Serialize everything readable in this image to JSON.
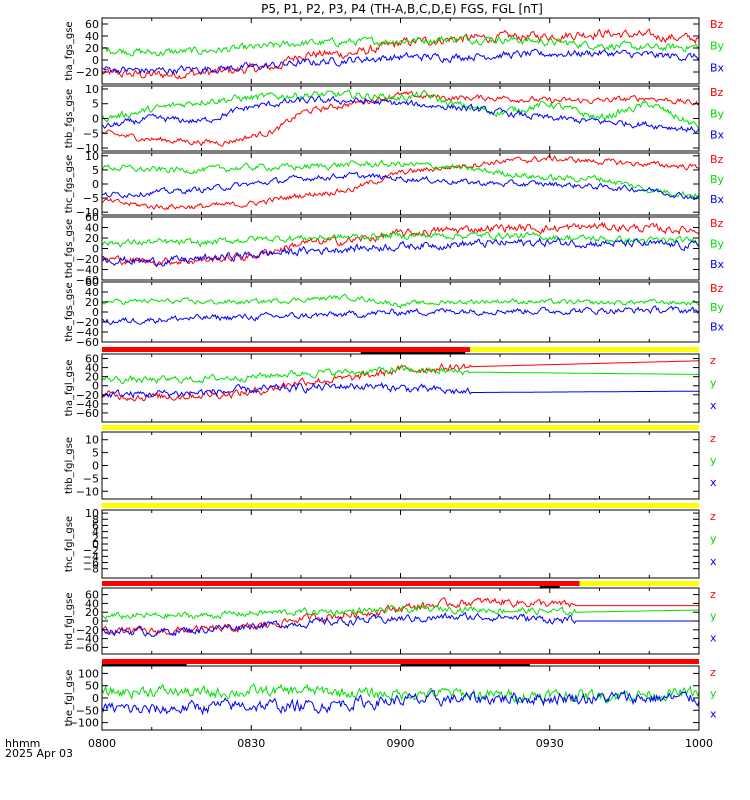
{
  "title": "P5, P1, P2, P3, P4 (TH-A,B,C,D,E) FGS, FGL [nT]",
  "colors": {
    "x": "#0000ff",
    "y": "#00e000",
    "z": "#ff0000",
    "bar_red": "#ff0000",
    "bar_yellow": "#ffff00",
    "bar_black": "#000000",
    "axis": "#000000"
  },
  "xaxis": {
    "range": [
      "08:00",
      "10:00"
    ],
    "ticks": [
      "0800",
      "0830",
      "0900",
      "0930",
      "1000"
    ],
    "label": "hhmm",
    "date": "2025 Apr 03"
  },
  "chart_data": [
    {
      "type": "line",
      "ylabel": "tha_fgs_gse",
      "ylim": [
        -40,
        70
      ],
      "yticks": [
        "60",
        "40",
        "20",
        "0",
        "−20"
      ],
      "legend": [
        "Bz",
        "By",
        "Bx"
      ],
      "series": [
        {
          "name": "Bz",
          "component": "z",
          "x": [
            "08:00",
            "08:10",
            "08:20",
            "08:30",
            "08:35",
            "08:40",
            "08:50",
            "08:55",
            "09:00",
            "09:10",
            "09:20",
            "09:30",
            "09:40",
            "09:50",
            "10:00"
          ],
          "y": [
            -22,
            -25,
            -22,
            -15,
            -12,
            10,
            10,
            18,
            28,
            35,
            38,
            40,
            45,
            40,
            35
          ],
          "noise": 6
        },
        {
          "name": "By",
          "component": "y",
          "x": [
            "08:00",
            "08:10",
            "08:20",
            "08:30",
            "08:40",
            "08:50",
            "09:00",
            "09:10",
            "09:20",
            "09:30",
            "09:40",
            "09:50",
            "10:00"
          ],
          "y": [
            18,
            12,
            15,
            20,
            28,
            30,
            32,
            35,
            35,
            30,
            25,
            20,
            22
          ],
          "noise": 5
        },
        {
          "name": "Bx",
          "component": "x",
          "x": [
            "08:00",
            "08:10",
            "08:20",
            "08:30",
            "08:40",
            "08:50",
            "09:00",
            "09:10",
            "09:20",
            "09:30",
            "09:40",
            "09:50",
            "10:00"
          ],
          "y": [
            -15,
            -18,
            -15,
            -12,
            -5,
            0,
            5,
            5,
            8,
            10,
            12,
            8,
            5
          ],
          "noise": 5
        }
      ]
    },
    {
      "type": "line",
      "ylabel": "thb_fgs_gse",
      "ylim": [
        -11,
        11
      ],
      "yticks": [
        "10",
        "5",
        "0",
        "−5",
        "−10"
      ],
      "legend": [
        "Bz",
        "By",
        "Bx"
      ],
      "series": [
        {
          "name": "Bz",
          "component": "z",
          "x": [
            "08:00",
            "08:10",
            "08:20",
            "08:25",
            "08:30",
            "08:35",
            "08:40",
            "08:50",
            "09:00",
            "09:10",
            "09:20",
            "09:30",
            "09:40",
            "09:50",
            "10:00"
          ],
          "y": [
            -5,
            -7,
            -8,
            -8,
            -6,
            -4,
            2,
            5,
            8,
            7,
            7,
            6,
            6,
            7,
            5
          ],
          "noise": 0.8
        },
        {
          "name": "By",
          "component": "y",
          "x": [
            "08:00",
            "08:10",
            "08:20",
            "08:30",
            "08:40",
            "08:50",
            "09:00",
            "09:05",
            "09:10",
            "09:20",
            "09:30",
            "09:40",
            "09:50",
            "10:00"
          ],
          "y": [
            0,
            3,
            6,
            7,
            8,
            8,
            7,
            8,
            5,
            2,
            5,
            0,
            5,
            -3
          ],
          "noise": 1.0
        },
        {
          "name": "Bx",
          "component": "x",
          "x": [
            "08:00",
            "08:10",
            "08:20",
            "08:30",
            "08:40",
            "08:50",
            "09:00",
            "09:10",
            "09:20",
            "09:30",
            "09:40",
            "09:50",
            "10:00"
          ],
          "y": [
            -3,
            0,
            -1,
            4,
            6,
            6,
            5,
            4,
            2,
            0,
            -1,
            -2,
            -4
          ],
          "noise": 0.9
        }
      ]
    },
    {
      "type": "line",
      "ylabel": "thc_fgs_gse",
      "ylim": [
        -11,
        11
      ],
      "yticks": [
        "10",
        "5",
        "0",
        "−5",
        "−10"
      ],
      "legend": [
        "Bz",
        "By",
        "Bx"
      ],
      "series": [
        {
          "name": "Bz",
          "component": "z",
          "x": [
            "08:00",
            "08:10",
            "08:20",
            "08:30",
            "08:40",
            "08:50",
            "09:00",
            "09:10",
            "09:20",
            "09:30",
            "09:40",
            "09:50",
            "10:00"
          ],
          "y": [
            -6,
            -8,
            -8,
            -7,
            -4,
            -2,
            4,
            6,
            8,
            9,
            8,
            7,
            6
          ],
          "noise": 0.8
        },
        {
          "name": "By",
          "component": "y",
          "x": [
            "08:00",
            "08:10",
            "08:20",
            "08:30",
            "08:40",
            "08:50",
            "09:00",
            "09:10",
            "09:20",
            "09:30",
            "09:40",
            "09:50",
            "10:00"
          ],
          "y": [
            6,
            5,
            5,
            6,
            6,
            7,
            7,
            6,
            4,
            2,
            2,
            -2,
            -4
          ],
          "noise": 0.9
        },
        {
          "name": "Bx",
          "component": "x",
          "x": [
            "08:00",
            "08:10",
            "08:20",
            "08:30",
            "08:40",
            "08:50",
            "09:00",
            "09:10",
            "09:20",
            "09:30",
            "09:40",
            "09:50",
            "10:00"
          ],
          "y": [
            -4,
            -3,
            -2,
            0,
            2,
            3,
            2,
            1,
            0,
            0,
            -1,
            -2,
            -5
          ],
          "noise": 0.8
        }
      ]
    },
    {
      "type": "line",
      "ylabel": "thd_fgs_gse",
      "ylim": [
        -60,
        60
      ],
      "yticks": [
        "60",
        "40",
        "20",
        "0",
        "−20",
        "−40",
        "−60"
      ],
      "legend": [
        "Bz",
        "By",
        "Bx"
      ],
      "series": [
        {
          "name": "Bz",
          "component": "z",
          "x": [
            "08:00",
            "08:10",
            "08:20",
            "08:30",
            "08:40",
            "08:50",
            "09:00",
            "09:10",
            "09:20",
            "09:30",
            "09:40",
            "09:50",
            "10:00"
          ],
          "y": [
            -20,
            -25,
            -22,
            -15,
            10,
            15,
            28,
            35,
            40,
            38,
            42,
            38,
            35
          ],
          "noise": 6
        },
        {
          "name": "By",
          "component": "y",
          "x": [
            "08:00",
            "08:10",
            "08:20",
            "08:30",
            "08:40",
            "08:50",
            "09:00",
            "09:10",
            "09:20",
            "09:30",
            "09:40",
            "09:50",
            "10:00"
          ],
          "y": [
            10,
            12,
            10,
            18,
            20,
            22,
            25,
            25,
            25,
            22,
            18,
            15,
            15
          ],
          "noise": 5
        },
        {
          "name": "Bx",
          "component": "x",
          "x": [
            "08:00",
            "08:10",
            "08:20",
            "08:30",
            "08:40",
            "08:50",
            "09:00",
            "09:10",
            "09:20",
            "09:30",
            "09:40",
            "09:50",
            "10:00"
          ],
          "y": [
            -20,
            -25,
            -20,
            -12,
            -5,
            0,
            5,
            8,
            10,
            12,
            10,
            8,
            5
          ],
          "noise": 6
        }
      ]
    },
    {
      "type": "line",
      "ylabel": "the_fgs_gse",
      "ylim": [
        -60,
        60
      ],
      "yticks": [
        "60",
        "40",
        "20",
        "0",
        "−20",
        "−40",
        "−60"
      ],
      "legend": [
        "Bz",
        "By",
        "Bx"
      ],
      "series": [
        {
          "name": "By",
          "component": "y",
          "x": [
            "08:00",
            "08:10",
            "08:20",
            "08:30",
            "08:40",
            "08:50",
            "09:00",
            "09:10",
            "09:20",
            "09:30",
            "09:40",
            "09:50",
            "10:00"
          ],
          "y": [
            20,
            22,
            20,
            20,
            25,
            30,
            15,
            20,
            22,
            20,
            18,
            20,
            18
          ],
          "noise": 4
        },
        {
          "name": "Bx",
          "component": "x",
          "x": [
            "08:00",
            "08:10",
            "08:20",
            "08:30",
            "08:40",
            "08:50",
            "09:00",
            "09:10",
            "09:20",
            "09:30",
            "09:40",
            "09:50",
            "10:00"
          ],
          "y": [
            -20,
            -15,
            -12,
            -10,
            -8,
            -5,
            0,
            2,
            3,
            2,
            3,
            4,
            3
          ],
          "noise": 5
        }
      ]
    },
    {
      "type": "line",
      "ylabel": "tha_fgl_gse",
      "ylim": [
        -80,
        70
      ],
      "yticks": [
        "60",
        "40",
        "20",
        "0",
        "−20",
        "−40",
        "−60"
      ],
      "legend": [
        "z",
        "y",
        "x"
      ],
      "series": [
        {
          "name": "z",
          "component": "z",
          "x": [
            "08:00",
            "08:10",
            "08:20",
            "08:30",
            "08:40",
            "08:50",
            "09:00",
            "09:14",
            "10:00"
          ],
          "y": [
            -20,
            -25,
            -20,
            -15,
            10,
            15,
            35,
            42,
            55
          ],
          "noise": 7,
          "noise_until": "09:14"
        },
        {
          "name": "y",
          "component": "y",
          "x": [
            "08:00",
            "08:10",
            "08:20",
            "08:30",
            "08:40",
            "08:50",
            "09:00",
            "09:14",
            "10:00"
          ],
          "y": [
            15,
            12,
            15,
            20,
            28,
            30,
            35,
            30,
            25
          ],
          "noise": 6,
          "noise_until": "09:14"
        },
        {
          "name": "x",
          "component": "x",
          "x": [
            "08:00",
            "08:10",
            "08:20",
            "08:30",
            "08:40",
            "08:50",
            "09:00",
            "09:14",
            "10:00"
          ],
          "y": [
            -20,
            -18,
            -15,
            -10,
            -5,
            0,
            -5,
            -15,
            -12
          ],
          "noise": 7,
          "noise_until": "09:14"
        }
      ]
    },
    {
      "type": "line",
      "ylabel": "thb_fgl_gse",
      "ylim": [
        -13,
        13
      ],
      "yticks": [
        "10",
        "5",
        "0",
        "−5",
        "−10"
      ],
      "legend": [
        "z",
        "y",
        "x"
      ],
      "series": []
    },
    {
      "type": "line",
      "ylabel": "thc_fgl_gse",
      "ylim": [
        -11,
        11
      ],
      "yticks": [
        "10",
        "8",
        "6",
        "4",
        "2",
        "0",
        "−2",
        "−4",
        "−6",
        "−8"
      ],
      "legend": [
        "z",
        "y",
        "x"
      ],
      "series": []
    },
    {
      "type": "line",
      "ylabel": "thd_fgl_gse",
      "ylim": [
        -75,
        75
      ],
      "yticks": [
        "60",
        "40",
        "20",
        "0",
        "−20",
        "−40",
        "−60"
      ],
      "legend": [
        "z",
        "y",
        "x"
      ],
      "series": [
        {
          "name": "z",
          "component": "z",
          "x": [
            "08:00",
            "08:10",
            "08:20",
            "08:30",
            "08:40",
            "08:50",
            "09:00",
            "09:10",
            "09:20",
            "09:35",
            "10:00"
          ],
          "y": [
            -20,
            -25,
            -20,
            -15,
            5,
            15,
            30,
            40,
            45,
            35,
            35
          ],
          "noise": 7,
          "noise_until": "09:35"
        },
        {
          "name": "y",
          "component": "y",
          "x": [
            "08:00",
            "08:10",
            "08:20",
            "08:30",
            "08:40",
            "08:50",
            "09:00",
            "09:10",
            "09:20",
            "09:35",
            "10:00"
          ],
          "y": [
            10,
            12,
            12,
            18,
            20,
            22,
            25,
            28,
            25,
            20,
            25
          ],
          "noise": 6,
          "noise_until": "09:35"
        },
        {
          "name": "x",
          "component": "x",
          "x": [
            "08:00",
            "08:10",
            "08:20",
            "08:30",
            "08:40",
            "08:50",
            "09:00",
            "09:10",
            "09:20",
            "09:35",
            "10:00"
          ],
          "y": [
            -20,
            -25,
            -20,
            -10,
            -5,
            0,
            5,
            8,
            10,
            0,
            0
          ],
          "noise": 7,
          "noise_until": "09:35"
        }
      ]
    },
    {
      "type": "line",
      "ylabel": "the_fgl_gse",
      "ylim": [
        -130,
        130
      ],
      "yticks": [
        "100",
        "50",
        "0",
        "−50",
        "−100"
      ],
      "legend": [
        "z",
        "y",
        "x"
      ],
      "series": [
        {
          "name": "y",
          "component": "y",
          "x": [
            "08:00",
            "08:10",
            "08:20",
            "08:30",
            "08:40",
            "08:50",
            "09:00",
            "09:10",
            "09:20",
            "09:30",
            "09:40",
            "09:50",
            "10:00"
          ],
          "y": [
            20,
            30,
            20,
            25,
            30,
            20,
            15,
            20,
            10,
            12,
            10,
            15,
            20
          ],
          "noise": 18
        },
        {
          "name": "x",
          "component": "x",
          "x": [
            "08:00",
            "08:10",
            "08:20",
            "08:30",
            "08:40",
            "08:50",
            "09:00",
            "09:10",
            "09:20",
            "09:30",
            "09:40",
            "09:50",
            "10:00"
          ],
          "y": [
            -40,
            -50,
            -35,
            -30,
            -35,
            -20,
            -10,
            -5,
            0,
            0,
            0,
            0,
            0
          ],
          "noise": 20
        }
      ]
    }
  ],
  "mode_bars": [
    {
      "before_panel": 5,
      "segments": [
        {
          "from": "08:00",
          "to": "09:14",
          "color": "red"
        },
        {
          "from": "09:14",
          "to": "10:00",
          "color": "yellow"
        }
      ],
      "black": [
        {
          "from": "08:52",
          "to": "09:13"
        }
      ]
    },
    {
      "before_panel": 6,
      "segments": [
        {
          "from": "08:00",
          "to": "10:00",
          "color": "yellow"
        }
      ],
      "black": []
    },
    {
      "before_panel": 7,
      "segments": [
        {
          "from": "08:00",
          "to": "10:00",
          "color": "yellow"
        }
      ],
      "black": []
    },
    {
      "before_panel": 8,
      "segments": [
        {
          "from": "08:00",
          "to": "09:36",
          "color": "red"
        },
        {
          "from": "09:36",
          "to": "10:00",
          "color": "yellow"
        }
      ],
      "black": [
        {
          "from": "09:28",
          "to": "09:32"
        }
      ]
    },
    {
      "before_panel": 9,
      "segments": [
        {
          "from": "08:00",
          "to": "10:00",
          "color": "red"
        }
      ],
      "black": [
        {
          "from": "08:00",
          "to": "08:17"
        },
        {
          "from": "09:00",
          "to": "09:26"
        }
      ]
    }
  ]
}
